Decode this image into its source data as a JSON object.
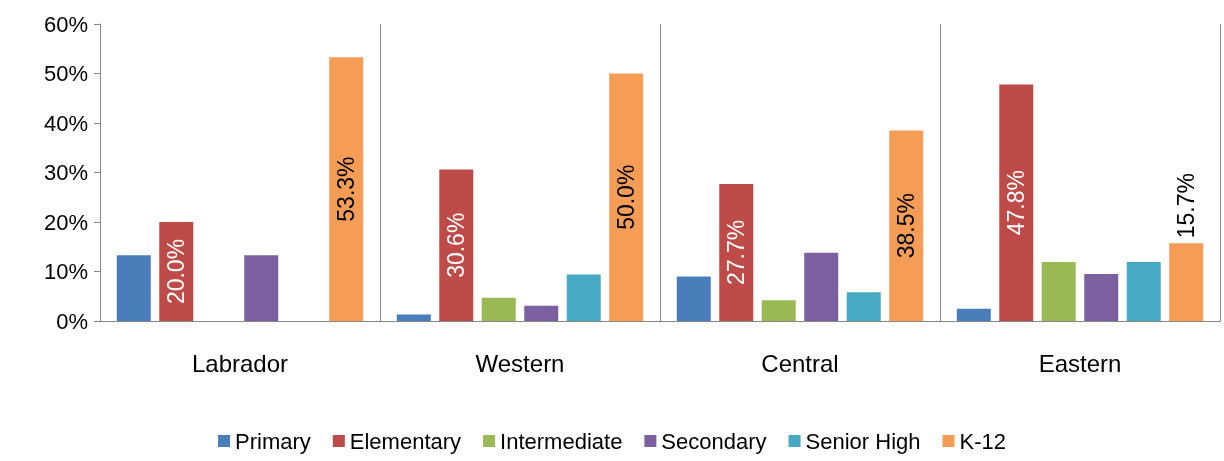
{
  "chart_data": {
    "type": "bar",
    "categories": [
      "Labrador",
      "Western",
      "Central",
      "Eastern"
    ],
    "series": [
      {
        "name": "Primary",
        "color": "#4a7ebb",
        "values": [
          13.3,
          1.3,
          9.0,
          2.5
        ],
        "value_labels": [
          null,
          null,
          null,
          null
        ]
      },
      {
        "name": "Elementary",
        "color": "#be4b48",
        "values": [
          20.0,
          30.6,
          27.7,
          47.8
        ],
        "value_labels": [
          "20.0%",
          "30.6%",
          "27.7%",
          "47.8%"
        ]
      },
      {
        "name": "Intermediate",
        "color": "#98b954",
        "values": [
          0,
          4.7,
          4.2,
          11.9
        ],
        "value_labels": [
          null,
          null,
          null,
          null
        ]
      },
      {
        "name": "Secondary",
        "color": "#7d60a0",
        "values": [
          13.3,
          3.1,
          13.8,
          9.5
        ],
        "value_labels": [
          null,
          null,
          null,
          null
        ]
      },
      {
        "name": "Senior High",
        "color": "#46aac5",
        "values": [
          0,
          9.4,
          5.8,
          11.9
        ],
        "value_labels": [
          null,
          null,
          null,
          null
        ]
      },
      {
        "name": "K-12",
        "color": "#f59d56",
        "values": [
          53.3,
          50.0,
          38.5,
          15.7
        ],
        "value_labels": [
          "53.3%",
          "50.0%",
          "38.5%",
          "15.7%"
        ]
      }
    ],
    "ylim": [
      0,
      60
    ],
    "yticks": [
      {
        "value": 0,
        "label": "0%"
      },
      {
        "value": 10,
        "label": "10%"
      },
      {
        "value": 20,
        "label": "20%"
      },
      {
        "value": 30,
        "label": "30%"
      },
      {
        "value": 40,
        "label": "40%"
      },
      {
        "value": 50,
        "label": "50%"
      },
      {
        "value": 60,
        "label": "60%"
      }
    ],
    "grid": "x",
    "legend": "bottom"
  }
}
